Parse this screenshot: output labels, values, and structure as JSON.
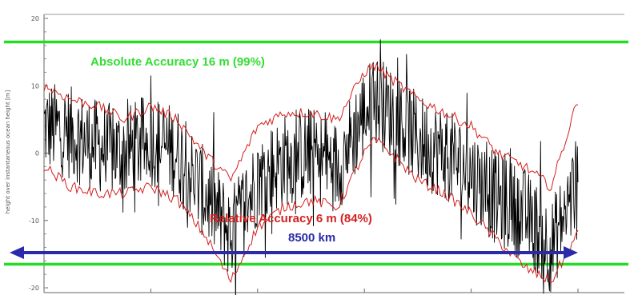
{
  "chart_data": {
    "type": "line",
    "title": "",
    "ylabel": "height over instantaneous ocean height [m]",
    "xlabel": "",
    "ylim": [
      -20,
      20
    ],
    "yticks": [
      -20,
      -10,
      0,
      10,
      20
    ],
    "yticks_labels": [
      "-20",
      "-10",
      "0",
      "10",
      "20"
    ],
    "xticks_labels": [
      "",
      "",
      "",
      "",
      "",
      ""
    ],
    "grid": false,
    "series": [
      {
        "role": "height_error",
        "color": "#000000",
        "x": [
          0,
          5,
          10,
          15,
          20,
          25,
          30,
          35,
          40,
          45,
          50,
          55,
          60,
          62,
          65,
          70,
          75,
          80,
          85,
          90,
          95,
          100
        ],
        "values": [
          4,
          3,
          1,
          0,
          2,
          0,
          -6,
          -12,
          -4,
          -1,
          0,
          -2,
          6,
          8,
          6,
          2,
          0,
          -3,
          -7,
          -9,
          -14,
          -4
        ]
      },
      {
        "role": "upper_envelope",
        "color": "#d42020",
        "x": [
          0,
          5,
          10,
          15,
          20,
          25,
          30,
          35,
          40,
          45,
          50,
          55,
          60,
          62,
          65,
          70,
          75,
          80,
          85,
          90,
          95,
          100
        ],
        "values": [
          10,
          8,
          7,
          5,
          7,
          5,
          0,
          -4,
          4,
          6,
          6,
          5,
          12,
          13,
          11,
          8,
          6,
          4,
          0,
          -2,
          -5,
          8
        ]
      },
      {
        "role": "lower_envelope",
        "color": "#d42020",
        "x": [
          0,
          5,
          10,
          15,
          20,
          25,
          30,
          35,
          40,
          45,
          50,
          55,
          60,
          62,
          65,
          70,
          75,
          80,
          85,
          90,
          95,
          100
        ],
        "values": [
          -2,
          -5,
          -6,
          -6,
          -5,
          -7,
          -12,
          -19,
          -11,
          -8,
          -7,
          -8,
          0,
          2,
          0,
          -4,
          -6,
          -9,
          -13,
          -17,
          -19,
          -12
        ]
      }
    ],
    "reference_lines": [
      {
        "y": 16.5,
        "color": "#22dd22"
      },
      {
        "y": -16.5,
        "color": "#22dd22"
      }
    ],
    "annotations": {
      "absolute": {
        "text": "Absolute Accuracy 16 m (99%)",
        "color": "#33dd33"
      },
      "relative": {
        "text": "Relative Accuracy 6 m (84%)",
        "color": "#d42020"
      },
      "distance": {
        "text": "8500 km",
        "color": "#2a2aaa"
      }
    }
  }
}
